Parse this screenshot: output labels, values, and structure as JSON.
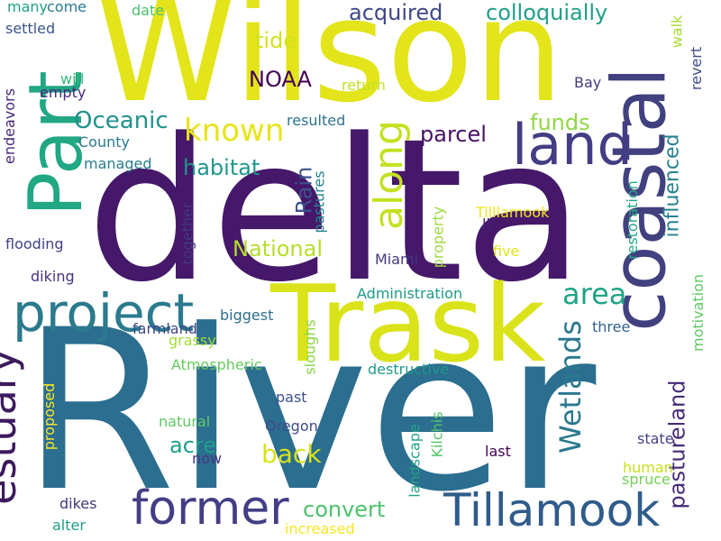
{
  "colors": {
    "background": "#ffffff",
    "palette": [
      "#440154",
      "#46327e",
      "#365c8d",
      "#277f8e",
      "#1fa187",
      "#4ac16d",
      "#a0da39",
      "#fde725"
    ]
  },
  "words": [
    {
      "text": "River",
      "color": "#2c6e8f"
    },
    {
      "text": "delta",
      "color": "#45186a"
    },
    {
      "text": "Wilson",
      "color": "#e3e41a"
    },
    {
      "text": "Trask",
      "color": "#dae319"
    },
    {
      "text": "coastal",
      "color": "#41417f"
    },
    {
      "text": "Part",
      "color": "#21a784"
    },
    {
      "text": "project",
      "color": "#2b7a8e"
    },
    {
      "text": "land",
      "color": "#433d84"
    },
    {
      "text": "estuary",
      "color": "#3d1a5e"
    },
    {
      "text": "former",
      "color": "#433e85"
    },
    {
      "text": "Tillamook",
      "color": "#2f5c8a"
    },
    {
      "text": "along",
      "color": "#c5e021"
    },
    {
      "text": "Wetlands",
      "color": "#2a788e"
    },
    {
      "text": "area",
      "color": "#20a386"
    },
    {
      "text": "known",
      "color": "#e8e419"
    },
    {
      "text": "Oceanic",
      "color": "#21918c"
    },
    {
      "text": "influenced",
      "color": "#26828e"
    },
    {
      "text": "pastureland",
      "color": "#472a7a"
    },
    {
      "text": "acquired",
      "color": "#3f4788"
    },
    {
      "text": "colloquially",
      "color": "#1fa088"
    },
    {
      "text": "tide",
      "color": "#d2e21b"
    },
    {
      "text": "NOAA",
      "color": "#440154"
    },
    {
      "text": "parcel",
      "color": "#471164"
    },
    {
      "text": "funds",
      "color": "#90d743"
    },
    {
      "text": "habitat",
      "color": "#1f968b"
    },
    {
      "text": "National",
      "color": "#b5de2b"
    },
    {
      "text": "Rain",
      "color": "#3b528b"
    },
    {
      "text": "back",
      "color": "#d8e219"
    },
    {
      "text": "acre",
      "color": "#1f9e89"
    },
    {
      "text": "convert",
      "color": "#4ec36b"
    },
    {
      "text": "Kilchis",
      "color": "#52c569"
    },
    {
      "text": "landscape",
      "color": "#20a386"
    },
    {
      "text": "Tilllamook",
      "color": "#f1e51d"
    },
    {
      "text": "restoration",
      "color": "#22a785"
    },
    {
      "text": "motivation",
      "color": "#5ec962"
    },
    {
      "text": "many",
      "color": "#1fa088"
    },
    {
      "text": "come",
      "color": "#2a788e"
    },
    {
      "text": "date",
      "color": "#4ac16d"
    },
    {
      "text": "settled",
      "color": "#3b528b"
    },
    {
      "text": "will",
      "color": "#38b977"
    },
    {
      "text": "walk",
      "color": "#aadc32"
    },
    {
      "text": "revert",
      "color": "#3e4a89"
    },
    {
      "text": "endeavors",
      "color": "#482878"
    },
    {
      "text": "empty",
      "color": "#482878"
    },
    {
      "text": "return",
      "color": "#c2df23"
    },
    {
      "text": "Bay",
      "color": "#443a83"
    },
    {
      "text": "resulted",
      "color": "#2c728e"
    },
    {
      "text": "County",
      "color": "#297b8e"
    },
    {
      "text": "managed",
      "color": "#287d8e"
    },
    {
      "text": "flooding",
      "color": "#424086"
    },
    {
      "text": "together",
      "color": "#443983"
    },
    {
      "text": "pastures",
      "color": "#25848e"
    },
    {
      "text": "property",
      "color": "#9bd93c"
    },
    {
      "text": "ll",
      "color": "#482173"
    },
    {
      "text": "five",
      "color": "#e2e418"
    },
    {
      "text": "Miami",
      "color": "#453781"
    },
    {
      "text": "diking",
      "color": "#46327e"
    },
    {
      "text": "Administration",
      "color": "#1f9a8a"
    },
    {
      "text": "biggest",
      "color": "#2e6e8e"
    },
    {
      "text": "farmland",
      "color": "#3f4788"
    },
    {
      "text": "grassy",
      "color": "#a2da37"
    },
    {
      "text": "sloughs",
      "color": "#89d548"
    },
    {
      "text": "three",
      "color": "#33628d"
    },
    {
      "text": "Atmospheric",
      "color": "#65cb5e"
    },
    {
      "text": "destructive",
      "color": "#1f988b"
    },
    {
      "text": "past",
      "color": "#3b528b"
    },
    {
      "text": "proposed",
      "color": "#fde725"
    },
    {
      "text": "natural",
      "color": "#5ec962"
    },
    {
      "text": "Oregon",
      "color": "#3e4c8a"
    },
    {
      "text": "now",
      "color": "#453781"
    },
    {
      "text": "last",
      "color": "#440154"
    },
    {
      "text": "state",
      "color": "#424086"
    },
    {
      "text": "human",
      "color": "#c8e020"
    },
    {
      "text": "spruce",
      "color": "#75d054"
    },
    {
      "text": "dikes",
      "color": "#46337f"
    },
    {
      "text": "alter",
      "color": "#1f9e89"
    },
    {
      "text": "increased",
      "color": "#f8e621"
    }
  ]
}
